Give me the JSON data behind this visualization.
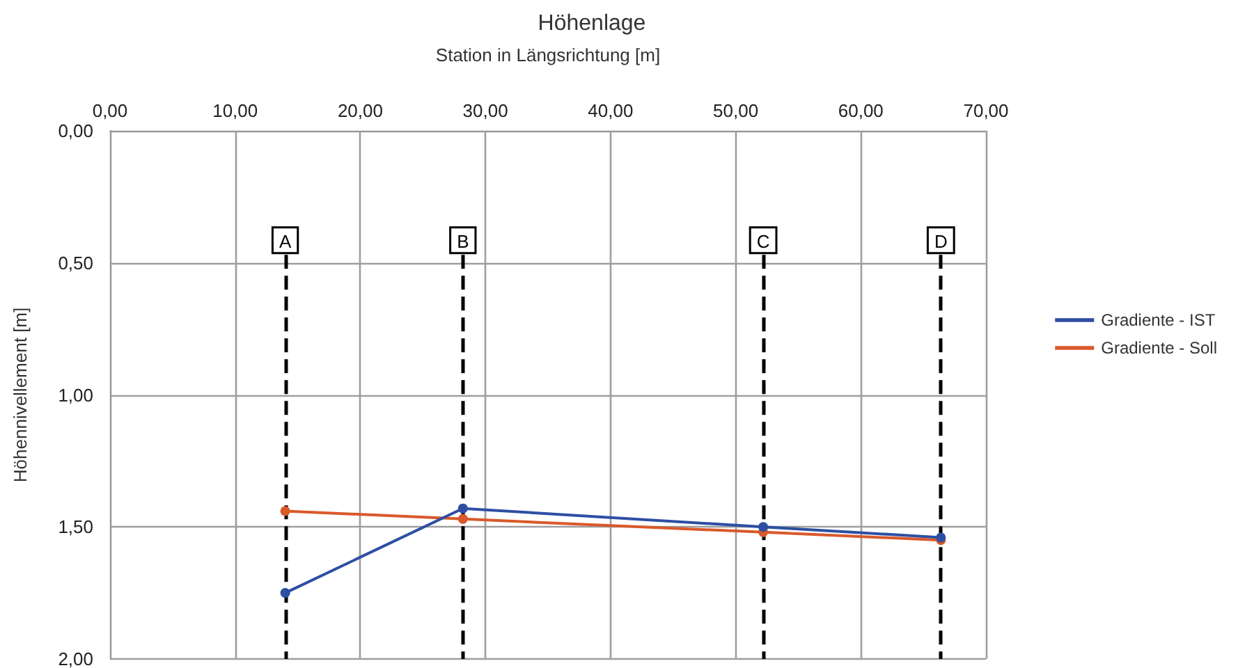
{
  "chart_data": {
    "type": "line",
    "title": "Höhenlage",
    "xlabel": "Station in Längsrichtung [m]",
    "ylabel": "Höhennivellement [m]",
    "xlim": [
      0,
      70
    ],
    "xticks": [
      {
        "value": 0,
        "label": "0,00"
      },
      {
        "value": 10,
        "label": "10,00"
      },
      {
        "value": 20,
        "label": "20,00"
      },
      {
        "value": 30,
        "label": "30,00"
      },
      {
        "value": 40,
        "label": "40,00"
      },
      {
        "value": 50,
        "label": "50,00"
      },
      {
        "value": 60,
        "label": "60,00"
      },
      {
        "value": 70,
        "label": "70,00"
      }
    ],
    "ylim": [
      2,
      0
    ],
    "yticks": [
      {
        "value": 0,
        "label": "0,00"
      },
      {
        "value": 0.5,
        "label": "0,50"
      },
      {
        "value": 1,
        "label": "1,00"
      },
      {
        "value": 1.5,
        "label": "1,50"
      },
      {
        "value": 2,
        "label": "2,00"
      }
    ],
    "x": [
      14.0,
      28.2,
      52.2,
      66.4
    ],
    "series": [
      {
        "name": "Gradiente - IST",
        "color": "#2e4ea3",
        "values": [
          1.75,
          1.43,
          1.5,
          1.54
        ]
      },
      {
        "name": "Gradiente - Soll",
        "color": "#d9592b",
        "values": [
          1.44,
          1.47,
          1.52,
          1.55
        ]
      }
    ],
    "ref_lines": [
      {
        "axis": "x",
        "value": 14.0,
        "label": "A",
        "color": "#000000",
        "line_style": "dashed"
      },
      {
        "axis": "x",
        "value": 28.2,
        "label": "B",
        "color": "#000000",
        "line_style": "dashed"
      },
      {
        "axis": "x",
        "value": 52.2,
        "label": "C",
        "color": "#000000",
        "line_style": "dashed"
      },
      {
        "axis": "x",
        "value": 66.4,
        "label": "D",
        "color": "#000000",
        "line_style": "dashed"
      }
    ],
    "grid": true,
    "legend": "right",
    "marker": "circle",
    "line_style": "solid"
  }
}
